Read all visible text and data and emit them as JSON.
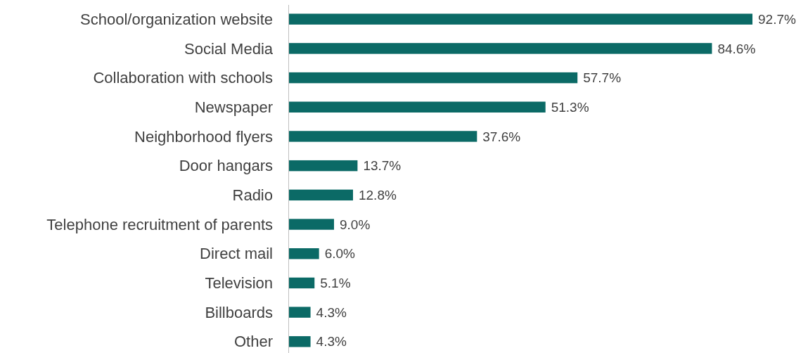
{
  "chart_data": {
    "type": "bar",
    "orientation": "horizontal",
    "categories": [
      "School/organization website",
      "Social Media",
      "Collaboration with schools",
      "Newspaper",
      "Neighborhood flyers",
      "Door hangars",
      "Radio",
      "Telephone recruitment of parents",
      "Direct mail",
      "Television",
      "Billboards",
      "Other"
    ],
    "values": [
      92.7,
      84.6,
      57.7,
      51.3,
      37.6,
      13.7,
      12.8,
      9.0,
      6.0,
      5.1,
      4.3,
      4.3
    ],
    "value_labels": [
      "92.7%",
      "84.6%",
      "57.7%",
      "51.3%",
      "37.6%",
      "13.7%",
      "12.8%",
      "9.0%",
      "6.0%",
      "5.1%",
      "4.3%",
      "4.3%"
    ],
    "color": "#0b6a66"
  }
}
